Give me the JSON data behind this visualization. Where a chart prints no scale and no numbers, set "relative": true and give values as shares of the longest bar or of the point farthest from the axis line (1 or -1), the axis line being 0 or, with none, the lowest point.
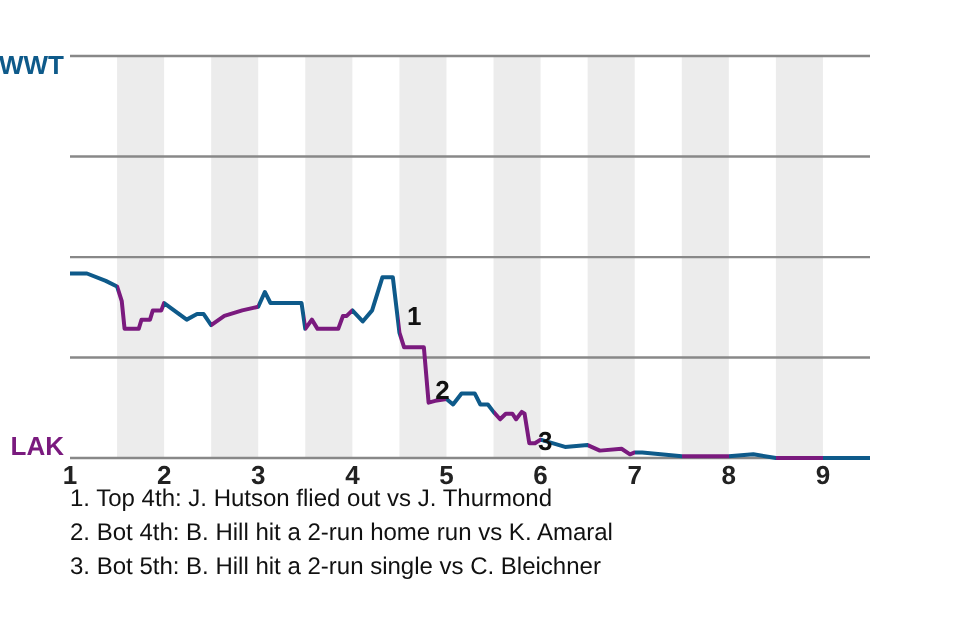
{
  "chart_data": {
    "type": "line",
    "relative": true,
    "xlim": [
      1,
      9.5
    ],
    "xticks": [
      1,
      2,
      3,
      4,
      5,
      6,
      7,
      8,
      9
    ],
    "marker": "none",
    "line_style": "solid",
    "ref_lines": [
      {
        "axis": "y",
        "value": 0.545,
        "label": null,
        "color": "#888888"
      },
      {
        "axis": "y",
        "value": 1.089,
        "label": null,
        "color": "#888888"
      },
      {
        "axis": "y",
        "value": 1.634,
        "label": null,
        "color": "#888888"
      },
      {
        "axis": "y",
        "value": 2.179,
        "label": "WWT",
        "color": "#888888"
      }
    ],
    "bands": [
      {
        "axis": "x",
        "from": 1.5,
        "to": 2,
        "color": "#ececec"
      },
      {
        "axis": "x",
        "from": 2.5,
        "to": 3,
        "color": "#ececec"
      },
      {
        "axis": "x",
        "from": 3.5,
        "to": 4,
        "color": "#ececec"
      },
      {
        "axis": "x",
        "from": 4.5,
        "to": 5,
        "color": "#ececec"
      },
      {
        "axis": "x",
        "from": 5.5,
        "to": 6,
        "color": "#ececec"
      },
      {
        "axis": "x",
        "from": 6.5,
        "to": 7,
        "color": "#ececec"
      },
      {
        "axis": "x",
        "from": 7.5,
        "to": 8,
        "color": "#ececec"
      },
      {
        "axis": "x",
        "from": 8.5,
        "to": 9,
        "color": "#ececec"
      }
    ],
    "series": [
      {
        "color": "#0e5a8a",
        "x": [
          1,
          1.18,
          1.38,
          1.5,
          1.55,
          1.58,
          1.73,
          1.76,
          1.85,
          1.88,
          1.97,
          2,
          2.24,
          2.35,
          2.42,
          2.5,
          2.64,
          2.83,
          3,
          3.07,
          3.13,
          3.46,
          3.5,
          3.57,
          3.63,
          3.85,
          3.9,
          3.94,
          4,
          4.11,
          4.21,
          4.32,
          4.43,
          4.5,
          4.55,
          4.76,
          4.81,
          4.88,
          5,
          5.07,
          5.16,
          5.3,
          5.36,
          5.44,
          5.5,
          5.57,
          5.63,
          5.7,
          5.74,
          5.8,
          5.83,
          5.88,
          5.94,
          6,
          6.26,
          6.5,
          6.63,
          6.86,
          6.95,
          7,
          7.08,
          7.5,
          8,
          8.26,
          8.5,
          9,
          9.5
        ],
        "values": [
          1,
          1,
          0.96,
          0.93,
          0.85,
          0.7,
          0.7,
          0.75,
          0.75,
          0.8,
          0.8,
          0.84,
          0.75,
          0.78,
          0.78,
          0.72,
          0.77,
          0.8,
          0.82,
          0.9,
          0.84,
          0.84,
          0.7,
          0.75,
          0.7,
          0.7,
          0.77,
          0.77,
          0.8,
          0.74,
          0.8,
          0.98,
          0.98,
          0.68,
          0.6,
          0.6,
          0.3,
          0.31,
          0.32,
          0.29,
          0.35,
          0.35,
          0.29,
          0.29,
          0.25,
          0.21,
          0.24,
          0.24,
          0.21,
          0.25,
          0.24,
          0.08,
          0.08,
          0.1,
          0.06,
          0.07,
          0.04,
          0.05,
          0.02,
          0.03,
          0.03,
          0.01,
          0.01,
          0.02,
          0,
          0,
          0
        ],
        "colors": [
          "#0e5a8a",
          "#0e5a8a",
          "#0e5a8a",
          "#7a1a7e",
          "#7a1a7e",
          "#7a1a7e",
          "#7a1a7e",
          "#7a1a7e",
          "#7a1a7e",
          "#7a1a7e",
          "#7a1a7e",
          "#0e5a8a",
          "#0e5a8a",
          "#0e5a8a",
          "#0e5a8a",
          "#7a1a7e",
          "#7a1a7e",
          "#7a1a7e",
          "#0e5a8a",
          "#0e5a8a",
          "#0e5a8a",
          "#0e5a8a",
          "#7a1a7e",
          "#7a1a7e",
          "#7a1a7e",
          "#7a1a7e",
          "#7a1a7e",
          "#7a1a7e",
          "#0e5a8a",
          "#0e5a8a",
          "#0e5a8a",
          "#0e5a8a",
          "#0e5a8a",
          "#7a1a7e",
          "#7a1a7e",
          "#7a1a7e",
          "#7a1a7e",
          "#7a1a7e",
          "#0e5a8a",
          "#0e5a8a",
          "#0e5a8a",
          "#0e5a8a",
          "#0e5a8a",
          "#0e5a8a",
          "#7a1a7e",
          "#7a1a7e",
          "#7a1a7e",
          "#7a1a7e",
          "#7a1a7e",
          "#7a1a7e",
          "#7a1a7e",
          "#7a1a7e",
          "#7a1a7e",
          "#0e5a8a",
          "#0e5a8a",
          "#7a1a7e",
          "#7a1a7e",
          "#7a1a7e",
          "#7a1a7e",
          "#0e5a8a",
          "#0e5a8a",
          "#7a1a7e",
          "#0e5a8a",
          "#0e5a8a",
          "#7a1a7e",
          "#0e5a8a",
          "#0e5a8a"
        ]
      }
    ],
    "annotations": [
      "LAK",
      {
        "text": "1",
        "x": 4.56,
        "y": 0.77
      },
      {
        "text": "2",
        "x": 4.86,
        "y": 0.37
      },
      {
        "text": "3",
        "x": 5.95,
        "y": 0.09
      },
      "1. Top 4th: J. Hutson flied out vs J. Thurmond",
      "2. Bot 4th: B. Hill hit a 2-run home run vs K. Amaral",
      "3. Bot 5th: B. Hill hit a 2-run single vs C. Bleichner"
    ]
  }
}
